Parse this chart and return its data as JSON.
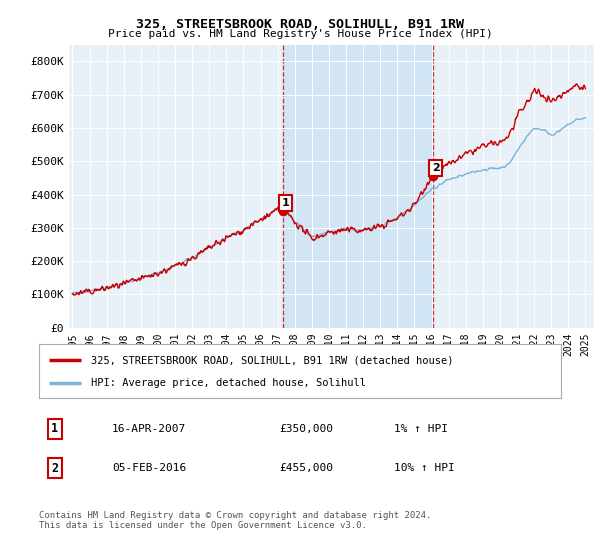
{
  "title": "325, STREETSBROOK ROAD, SOLIHULL, B91 1RW",
  "subtitle": "Price paid vs. HM Land Registry's House Price Index (HPI)",
  "ylabel_ticks": [
    "£0",
    "£100K",
    "£200K",
    "£300K",
    "£400K",
    "£500K",
    "£600K",
    "£700K",
    "£800K"
  ],
  "ytick_values": [
    0,
    100000,
    200000,
    300000,
    400000,
    500000,
    600000,
    700000,
    800000
  ],
  "ylim": [
    0,
    850000
  ],
  "xlim_start": 1994.8,
  "xlim_end": 2025.5,
  "hpi_color": "#7ab4d8",
  "price_color": "#cc0000",
  "marker1_x": 2007.29,
  "marker1_y": 350000,
  "marker1_label": "1",
  "marker2_x": 2016.09,
  "marker2_y": 455000,
  "marker2_label": "2",
  "vline1_x": 2007.29,
  "vline2_x": 2016.09,
  "shade_color": "#d0e4f5",
  "legend_line1": "325, STREETSBROOK ROAD, SOLIHULL, B91 1RW (detached house)",
  "legend_line2": "HPI: Average price, detached house, Solihull",
  "table_row1_num": "1",
  "table_row1_date": "16-APR-2007",
  "table_row1_price": "£350,000",
  "table_row1_hpi": "1% ↑ HPI",
  "table_row2_num": "2",
  "table_row2_date": "05-FEB-2016",
  "table_row2_price": "£455,000",
  "table_row2_hpi": "10% ↑ HPI",
  "footnote": "Contains HM Land Registry data © Crown copyright and database right 2024.\nThis data is licensed under the Open Government Licence v3.0.",
  "plot_bg_color": "#e8f0f8",
  "fig_bg_color": "#ffffff"
}
